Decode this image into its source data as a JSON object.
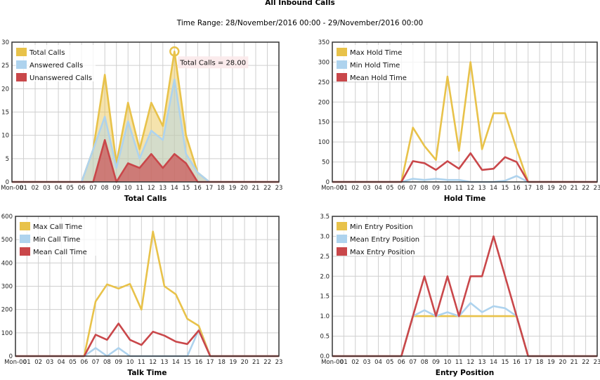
{
  "page": {
    "title": "All Inbound Calls",
    "subtitle": "Time Range: 28/November/2016 00:00 - 29/November/2016 00:00"
  },
  "colors": {
    "gold": "#e8c24a",
    "blue": "#aed3ee",
    "red": "#c9474a",
    "grid": "#cfcfcf"
  },
  "tooltip": {
    "text": "Total Calls = 28.00",
    "chart": 0,
    "series": 0,
    "index": 14
  },
  "chart_data": [
    {
      "type": "area",
      "title": "",
      "xlabel": "Total Calls",
      "ylabel": "",
      "x": [
        "Mon-00",
        "01",
        "02",
        "03",
        "04",
        "05",
        "06",
        "07",
        "08",
        "09",
        "10",
        "11",
        "12",
        "13",
        "14",
        "15",
        "16",
        "17",
        "18",
        "19",
        "20",
        "21",
        "22",
        "23"
      ],
      "ylim": [
        0,
        30
      ],
      "yticks": [
        0,
        5,
        10,
        15,
        20,
        25,
        30
      ],
      "grid": true,
      "legend": "top-left",
      "series": [
        {
          "name": "Total Calls",
          "color": "#e8c24a",
          "values": [
            0,
            0,
            0,
            0,
            0,
            0,
            0,
            7,
            23,
            4,
            17,
            7,
            17,
            12,
            28,
            10,
            2,
            0,
            0,
            0,
            0,
            0,
            0,
            0
          ]
        },
        {
          "name": "Answered Calls",
          "color": "#aed3ee",
          "values": [
            0,
            0,
            0,
            0,
            0,
            0,
            0,
            7,
            14,
            3,
            13,
            5,
            11,
            9,
            22,
            6,
            2,
            0,
            0,
            0,
            0,
            0,
            0,
            0
          ]
        },
        {
          "name": "Unanswered Calls",
          "color": "#c9474a",
          "values": [
            0,
            0,
            0,
            0,
            0,
            0,
            0,
            0,
            9,
            0,
            4,
            3,
            6,
            3,
            6,
            4,
            0,
            0,
            0,
            0,
            0,
            0,
            0,
            0
          ]
        }
      ]
    },
    {
      "type": "line",
      "title": "",
      "xlabel": "Hold Time",
      "ylabel": "",
      "x": [
        "Mon-00",
        "01",
        "02",
        "03",
        "04",
        "05",
        "06",
        "07",
        "08",
        "09",
        "10",
        "11",
        "12",
        "13",
        "14",
        "15",
        "16",
        "17",
        "18",
        "19",
        "20",
        "21",
        "22",
        "23"
      ],
      "ylim": [
        0,
        350
      ],
      "yticks": [
        0,
        50,
        100,
        150,
        200,
        250,
        300,
        350
      ],
      "grid": true,
      "legend": "top-left",
      "series": [
        {
          "name": "Max Hold Time",
          "color": "#e8c24a",
          "values": [
            0,
            0,
            0,
            0,
            0,
            0,
            0,
            136,
            90,
            55,
            264,
            78,
            300,
            82,
            172,
            172,
            83,
            0,
            0,
            0,
            0,
            0,
            0,
            0
          ]
        },
        {
          "name": "Min Hold Time",
          "color": "#aed3ee",
          "values": [
            0,
            0,
            0,
            0,
            0,
            0,
            0,
            8,
            5,
            8,
            5,
            5,
            0,
            0,
            0,
            3,
            15,
            0,
            0,
            0,
            0,
            0,
            0,
            0
          ]
        },
        {
          "name": "Mean Hold Time",
          "color": "#c9474a",
          "values": [
            0,
            0,
            0,
            0,
            0,
            0,
            0,
            52,
            47,
            30,
            52,
            33,
            72,
            30,
            33,
            62,
            50,
            0,
            0,
            0,
            0,
            0,
            0,
            0
          ]
        }
      ]
    },
    {
      "type": "line",
      "title": "",
      "xlabel": "Talk Time",
      "ylabel": "",
      "x": [
        "Mon-00",
        "01",
        "02",
        "03",
        "04",
        "05",
        "06",
        "07",
        "08",
        "09",
        "10",
        "11",
        "12",
        "13",
        "14",
        "15",
        "16",
        "17",
        "18",
        "19",
        "20",
        "21",
        "22",
        "23"
      ],
      "ylim": [
        0,
        600
      ],
      "yticks": [
        0,
        100,
        200,
        300,
        400,
        500,
        600
      ],
      "grid": true,
      "legend": "top-left",
      "series": [
        {
          "name": "Max Call Time",
          "color": "#e8c24a",
          "values": [
            0,
            0,
            0,
            0,
            0,
            0,
            0,
            235,
            308,
            290,
            310,
            200,
            535,
            300,
            265,
            160,
            130,
            0,
            0,
            0,
            0,
            0,
            0,
            0
          ]
        },
        {
          "name": "Min Call Time",
          "color": "#aed3ee",
          "values": [
            0,
            0,
            0,
            0,
            0,
            0,
            0,
            35,
            0,
            35,
            0,
            0,
            0,
            0,
            0,
            0,
            112,
            0,
            0,
            0,
            0,
            0,
            0,
            0
          ]
        },
        {
          "name": "Mean Call Time",
          "color": "#c9474a",
          "values": [
            0,
            0,
            0,
            0,
            0,
            0,
            0,
            92,
            70,
            140,
            70,
            48,
            105,
            88,
            62,
            52,
            110,
            0,
            0,
            0,
            0,
            0,
            0,
            0
          ]
        }
      ]
    },
    {
      "type": "line",
      "title": "",
      "xlabel": "Entry Position",
      "ylabel": "",
      "x": [
        "Mon-00",
        "01",
        "02",
        "03",
        "04",
        "05",
        "06",
        "07",
        "08",
        "09",
        "10",
        "11",
        "12",
        "13",
        "14",
        "15",
        "16",
        "17",
        "18",
        "19",
        "20",
        "21",
        "22",
        "23"
      ],
      "ylim": [
        0,
        3.5
      ],
      "yticks": [
        "0.0",
        "0.5",
        "1.0",
        "1.5",
        "2.0",
        "2.5",
        "3.0",
        "3.5"
      ],
      "grid": true,
      "legend": "top-left",
      "series": [
        {
          "name": "Min Entry Position",
          "color": "#e8c24a",
          "values": [
            0,
            0,
            0,
            0,
            0,
            0,
            0,
            1,
            1,
            1,
            1,
            1,
            1,
            1,
            1,
            1,
            1,
            0,
            0,
            0,
            0,
            0,
            0,
            0
          ]
        },
        {
          "name": "Mean Entry Position",
          "color": "#aed3ee",
          "values": [
            0,
            0,
            0,
            0,
            0,
            0,
            0,
            1,
            1.15,
            1,
            1.1,
            1,
            1.33,
            1.1,
            1.25,
            1.2,
            1,
            0,
            0,
            0,
            0,
            0,
            0,
            0
          ]
        },
        {
          "name": "Max Entry Position",
          "color": "#c9474a",
          "values": [
            0,
            0,
            0,
            0,
            0,
            0,
            0,
            1,
            2,
            1,
            2,
            1,
            2,
            2,
            3,
            2,
            1,
            0,
            0,
            0,
            0,
            0,
            0,
            0
          ]
        }
      ]
    }
  ]
}
